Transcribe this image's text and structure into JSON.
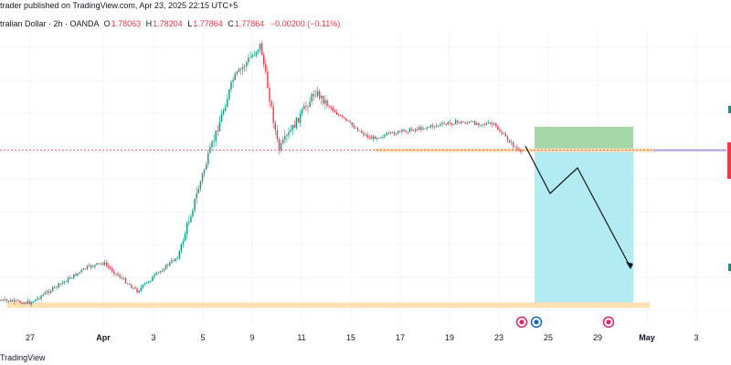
{
  "header": {
    "published_text": "trader published on TradingView.com, Apr 23, 2025 22:15 UTC+5",
    "symbol_text": "tralian Dollar · 2h · OANDA",
    "ohlc": [
      {
        "key": "O",
        "value": "1.78063"
      },
      {
        "key": "H",
        "value": "1.78204"
      },
      {
        "key": "L",
        "value": "1.77864"
      },
      {
        "key": "C",
        "value": "1.77864"
      }
    ],
    "change_text": "−0.00200 (−0.11%)"
  },
  "x_axis": {
    "ticks": [
      {
        "label": "27",
        "bold": false
      },
      {
        "label": "Apr",
        "bold": true
      },
      {
        "label": "3",
        "bold": false
      },
      {
        "label": "5",
        "bold": false
      },
      {
        "label": "9",
        "bold": false
      },
      {
        "label": "11",
        "bold": false
      },
      {
        "label": "15",
        "bold": false
      },
      {
        "label": "17",
        "bold": false
      },
      {
        "label": "19",
        "bold": false
      },
      {
        "label": "23",
        "bold": false
      },
      {
        "label": "25",
        "bold": false
      },
      {
        "label": "29",
        "bold": false
      },
      {
        "label": "May",
        "bold": true
      },
      {
        "label": "3",
        "bold": false
      }
    ]
  },
  "watermark": "TradingView",
  "colors": {
    "up_candle": "#089981",
    "down_candle": "#f23645",
    "grid": "#f0f3fa",
    "zone_highlight": "#ffe0b2",
    "target_zone": "#a5d6a7",
    "stop_zone": "#b2ebf2",
    "price_line": "#f23645"
  },
  "chart_data": {
    "type": "candlestick",
    "title": "",
    "timeframe": "2h",
    "symbol_source": "OANDA",
    "x": [
      "27",
      "Apr",
      "3",
      "5",
      "9",
      "11",
      "15",
      "17",
      "19",
      "23",
      "25",
      "29",
      "May",
      "3"
    ],
    "close_path": [
      {
        "x": "Mar 26",
        "price": 1.716
      },
      {
        "x": "27",
        "price": 1.715
      },
      {
        "x": "Mar 31",
        "price": 1.73
      },
      {
        "x": "Apr",
        "price": 1.732
      },
      {
        "x": "3",
        "price": 1.72
      },
      {
        "x": "4",
        "price": 1.735
      },
      {
        "x": "5",
        "price": 1.77
      },
      {
        "x": "7",
        "price": 1.81
      },
      {
        "x": "9",
        "price": 1.825
      },
      {
        "x": "10",
        "price": 1.78
      },
      {
        "x": "11",
        "price": 1.805
      },
      {
        "x": "13",
        "price": 1.795
      },
      {
        "x": "15",
        "price": 1.785
      },
      {
        "x": "17",
        "price": 1.788
      },
      {
        "x": "19",
        "price": 1.792
      },
      {
        "x": "21",
        "price": 1.791
      },
      {
        "x": "23",
        "price": 1.7786
      }
    ],
    "zones": {
      "resistance_support_upper": 1.78,
      "support_lower": 1.714,
      "target_zone": [
        1.78,
        1.79
      ],
      "projection_zone": [
        1.714,
        1.78
      ]
    },
    "projection_path": [
      "23",
      "25",
      "27",
      "29"
    ],
    "current_price": 1.77864,
    "grid": true,
    "legend": "top-left"
  }
}
